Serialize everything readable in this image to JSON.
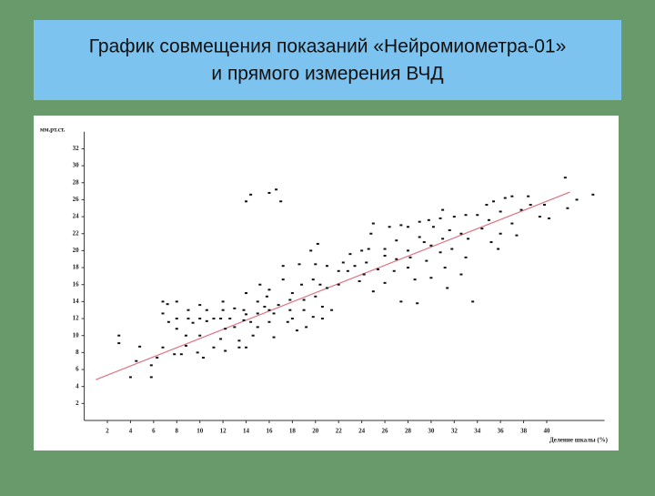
{
  "title_lines": [
    "График совмещения показаний «Нейромиометра-01»",
    "и прямого измерения ВЧД"
  ],
  "chart_data": {
    "type": "scatter",
    "y_label": "мм.рт.ст.",
    "x_label": "Деление шкалы (%)",
    "xlim": [
      0,
      45
    ],
    "ylim": [
      0,
      34
    ],
    "xticks": [
      2,
      4,
      6,
      8,
      10,
      12,
      14,
      16,
      18,
      20,
      22,
      24,
      26,
      28,
      30,
      32,
      34,
      36,
      38,
      40
    ],
    "yticks": [
      2,
      4,
      6,
      8,
      10,
      12,
      14,
      16,
      18,
      20,
      22,
      24,
      26,
      28,
      30,
      32
    ],
    "color": "#111111",
    "x": [
      3,
      3,
      4,
      4.5,
      4.8,
      5.8,
      5.8,
      6.3,
      6.8,
      6.8,
      6.8,
      7.2,
      7.3,
      7.8,
      8,
      8,
      8,
      8.4,
      8.8,
      8.8,
      9,
      9,
      9.4,
      9.8,
      10,
      10,
      10,
      10.3,
      10.6,
      10.6,
      11.2,
      11.2,
      11.8,
      11.8,
      12,
      12,
      12.2,
      12.2,
      12.6,
      13,
      13,
      13.4,
      13.4,
      13.8,
      13.8,
      14,
      14,
      14,
      14.4,
      14.6,
      15,
      15,
      15,
      15.2,
      15.6,
      15.8,
      16,
      16,
      16,
      16.4,
      16.4,
      16.8,
      17.2,
      17.2,
      17.6,
      17.8,
      17.8,
      18,
      18,
      18.4,
      18.6,
      18.8,
      19,
      19,
      19.2,
      19.6,
      19.8,
      19.8,
      20,
      20,
      20.2,
      20.4,
      20.6,
      20.6,
      21,
      21,
      21.4,
      22,
      22,
      22.4,
      22.8,
      23,
      23.4,
      23.8,
      24,
      24.2,
      24.4,
      24.6,
      24.8,
      25,
      25,
      25.4,
      26,
      26,
      26,
      26.4,
      26.8,
      27,
      27,
      27.4,
      27.4,
      28,
      28,
      28,
      28.2,
      28.6,
      28.8,
      29,
      29,
      29.4,
      29.6,
      29.8,
      30,
      30,
      30.2,
      30.8,
      30.8,
      31,
      31,
      31.2,
      31.4,
      31.6,
      31.8,
      32,
      32.6,
      32.6,
      33,
      33,
      33.2,
      33.6,
      34,
      34.4,
      34.8,
      35,
      35.2,
      35.4,
      35.8,
      36,
      36,
      36.4,
      37,
      37,
      37.4,
      37.8,
      38.4,
      38.6,
      39.4,
      39.8,
      40.2,
      41.6,
      41.8,
      42.6,
      44,
      14.4,
      16,
      16.6,
      17,
      14
    ],
    "values": [
      10,
      9.1,
      5.1,
      7,
      8.7,
      6.5,
      5.1,
      7.4,
      8.6,
      12.6,
      14,
      13.7,
      11.6,
      7.8,
      10.8,
      12,
      14,
      7.8,
      8.8,
      10,
      12,
      13,
      11.5,
      8,
      10,
      12,
      13.6,
      7.4,
      11.7,
      13,
      12,
      8.6,
      9.6,
      12,
      14,
      13,
      10.8,
      8.2,
      12,
      13.2,
      11,
      9.4,
      8.6,
      13,
      11.8,
      15,
      8.6,
      12.5,
      11.6,
      10,
      14,
      12.6,
      11,
      16,
      13.4,
      14.6,
      13,
      15.4,
      11.6,
      9.8,
      12.6,
      13.6,
      18.2,
      16.6,
      11.6,
      14.2,
      13,
      15,
      12,
      10.6,
      18.4,
      16,
      13,
      14.2,
      11,
      20,
      16.6,
      12.2,
      18.4,
      14.6,
      20.8,
      16,
      13.4,
      12,
      15.6,
      18.2,
      13,
      16,
      17.6,
      18.6,
      17.6,
      19.6,
      18.2,
      16.4,
      20,
      17.2,
      18.6,
      20.2,
      22,
      15.2,
      23.2,
      17.8,
      20.2,
      16.2,
      19.4,
      22.8,
      17.6,
      19,
      21.2,
      14,
      23,
      20,
      22.8,
      18,
      19.2,
      16.6,
      13.8,
      21.6,
      23.4,
      21,
      18.8,
      23.6,
      20.6,
      16.8,
      22.8,
      23.8,
      19.8,
      21.4,
      24.8,
      18,
      15.6,
      22.4,
      20.2,
      24,
      17.2,
      22,
      19.2,
      24.2,
      21.4,
      14,
      24.2,
      22.6,
      25.4,
      23.6,
      21,
      25.8,
      20.2,
      24.6,
      22,
      26.2,
      23.2,
      26.4,
      21.8,
      24.8,
      26.4,
      25.4,
      24,
      25.4,
      23.8,
      28.6,
      25,
      26,
      26.6,
      26.6,
      26.8,
      27.2,
      25.8,
      25.8
    ],
    "trend": {
      "x": [
        1,
        42
      ],
      "values": [
        4.8,
        26.9
      ],
      "color": "#e07080"
    }
  }
}
